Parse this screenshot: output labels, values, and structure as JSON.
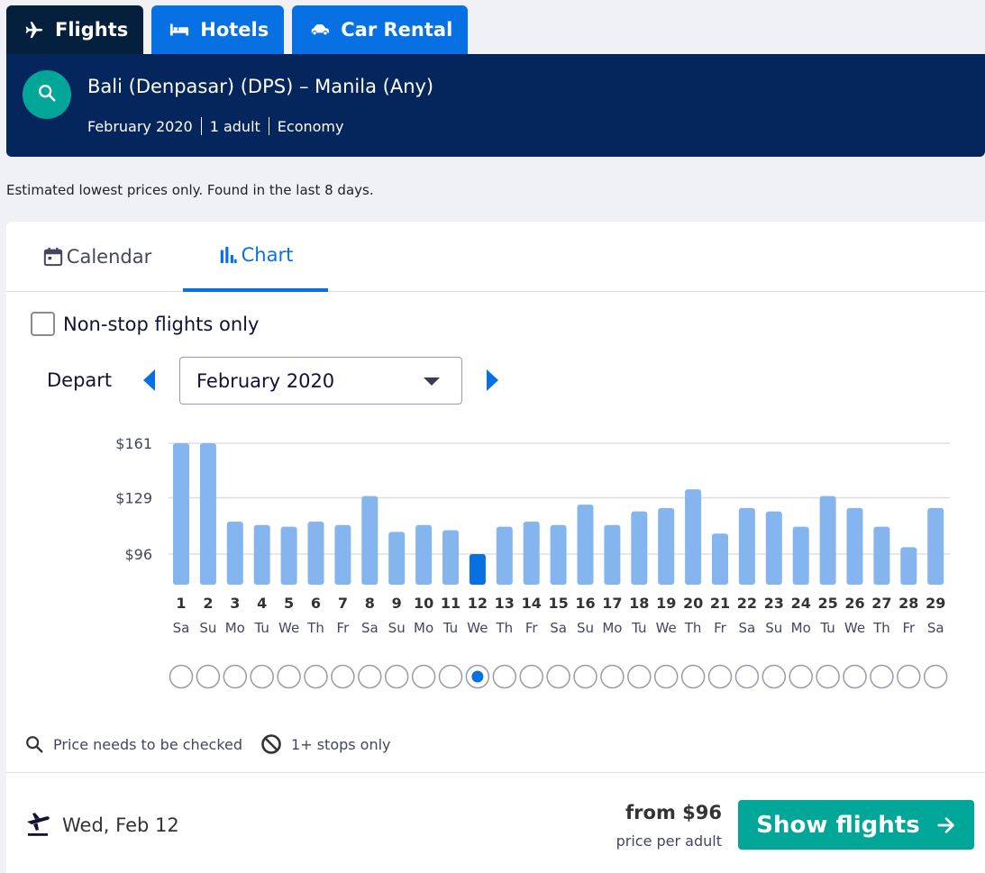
{
  "product_tabs": [
    {
      "label": "Flights",
      "icon": "plane-icon",
      "active": true
    },
    {
      "label": "Hotels",
      "icon": "bed-icon",
      "active": false
    },
    {
      "label": "Car Rental",
      "icon": "car-icon",
      "active": false
    }
  ],
  "search": {
    "route": "Bali (Denpasar) (DPS) – Manila (Any)",
    "month": "February 2020",
    "travellers": "1 adult",
    "cabin": "Economy"
  },
  "note": "Estimated lowest prices only. Found in the last 8 days.",
  "view_tabs": {
    "calendar": "Calendar",
    "chart": "Chart"
  },
  "nonstop_label": "Non-stop flights only",
  "depart_label": "Depart",
  "month_select": {
    "value": "February 2020"
  },
  "chart_data": {
    "type": "bar",
    "title": "",
    "xlabel": "",
    "ylabel": "",
    "y_ticks": [
      {
        "value": 161,
        "label": "$161"
      },
      {
        "value": 129,
        "label": "$129"
      },
      {
        "value": 96,
        "label": "$96"
      }
    ],
    "ylim": [
      78,
      161
    ],
    "categories": [
      "1",
      "2",
      "3",
      "4",
      "5",
      "6",
      "7",
      "8",
      "9",
      "10",
      "11",
      "12",
      "13",
      "14",
      "15",
      "16",
      "17",
      "18",
      "19",
      "20",
      "21",
      "22",
      "23",
      "24",
      "25",
      "26",
      "27",
      "28",
      "29"
    ],
    "weekdays": [
      "Sa",
      "Su",
      "Mo",
      "Tu",
      "We",
      "Th",
      "Fr",
      "Sa",
      "Su",
      "Mo",
      "Tu",
      "We",
      "Th",
      "Fr",
      "Sa",
      "Su",
      "Mo",
      "Tu",
      "We",
      "Th",
      "Fr",
      "Sa",
      "Su",
      "Mo",
      "Tu",
      "We",
      "Th",
      "Fr",
      "Sa"
    ],
    "values": [
      161,
      161,
      115,
      113,
      112,
      115,
      113,
      130,
      109,
      113,
      110,
      96,
      112,
      115,
      113,
      125,
      113,
      121,
      123,
      134,
      108,
      123,
      121,
      112,
      130,
      123,
      112,
      100,
      123
    ],
    "selected_index": 11,
    "colors": {
      "bar": "#84b5ef",
      "selected": "#0770e3",
      "grid": "#dddde5"
    },
    "grid": true
  },
  "legend": {
    "price_check": "Price needs to be checked",
    "stops_only": "1+ stops only"
  },
  "selection": {
    "date": "Wed, Feb 12",
    "price": "from $96",
    "price_note": "price per adult",
    "button": "Show flights"
  },
  "colors": {
    "brand_dark": "#05203c",
    "header_bg": "#05265c",
    "accent_blue": "#0770e3",
    "accent_green": "#00a698"
  }
}
